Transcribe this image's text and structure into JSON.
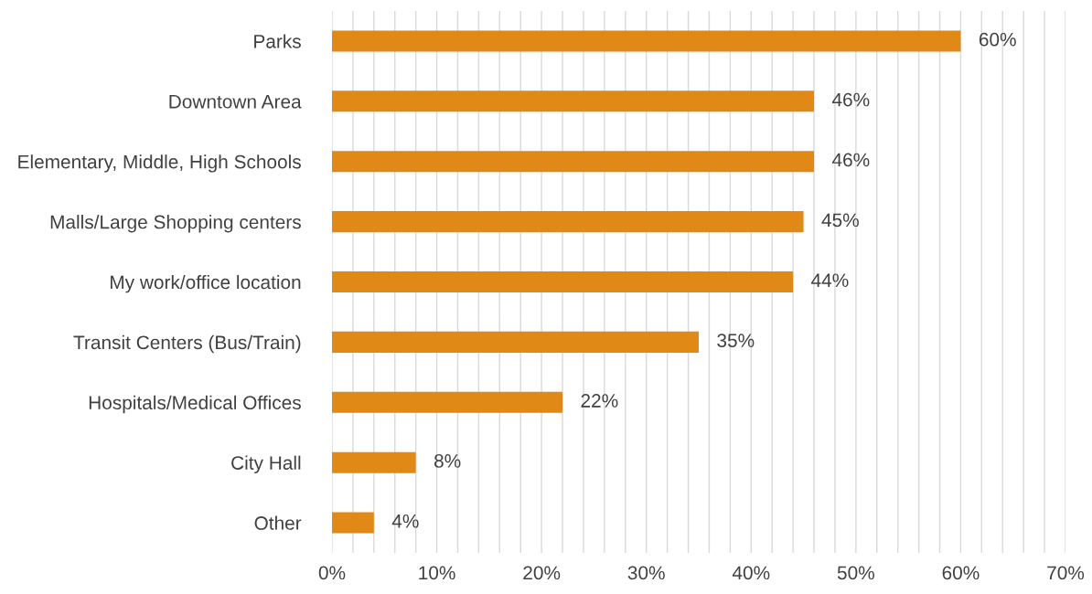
{
  "chart_data": {
    "type": "bar",
    "orientation": "horizontal",
    "categories": [
      "Parks",
      "Downtown Area",
      "Elementary, Middle, High Schools",
      "Malls/Large Shopping centers",
      "My work/office location",
      "Transit Centers (Bus/Train)",
      "Hospitals/Medical Offices",
      "City Hall",
      "Other"
    ],
    "values": [
      60,
      46,
      46,
      45,
      44,
      35,
      22,
      8,
      4
    ],
    "value_labels": [
      "60%",
      "46%",
      "46%",
      "45%",
      "44%",
      "35%",
      "22%",
      "8%",
      "4%"
    ],
    "color": "#e08916",
    "xlim": [
      0,
      70
    ],
    "xticks": [
      {
        "value": 0,
        "label": "0%"
      },
      {
        "value": 2,
        "label": null
      },
      {
        "value": 4,
        "label": null
      },
      {
        "value": 6,
        "label": null
      },
      {
        "value": 8,
        "label": null
      },
      {
        "value": 10,
        "label": "10%"
      },
      {
        "value": 12,
        "label": null
      },
      {
        "value": 14,
        "label": null
      },
      {
        "value": 16,
        "label": null
      },
      {
        "value": 18,
        "label": null
      },
      {
        "value": 20,
        "label": "20%"
      },
      {
        "value": 22,
        "label": null
      },
      {
        "value": 24,
        "label": null
      },
      {
        "value": 26,
        "label": null
      },
      {
        "value": 28,
        "label": null
      },
      {
        "value": 30,
        "label": "30%"
      },
      {
        "value": 32,
        "label": null
      },
      {
        "value": 34,
        "label": null
      },
      {
        "value": 36,
        "label": null
      },
      {
        "value": 38,
        "label": null
      },
      {
        "value": 40,
        "label": "40%"
      },
      {
        "value": 42,
        "label": null
      },
      {
        "value": 44,
        "label": null
      },
      {
        "value": 46,
        "label": null
      },
      {
        "value": 48,
        "label": null
      },
      {
        "value": 50,
        "label": "50%"
      },
      {
        "value": 52,
        "label": null
      },
      {
        "value": 54,
        "label": null
      },
      {
        "value": 56,
        "label": null
      },
      {
        "value": 58,
        "label": null
      },
      {
        "value": 60,
        "label": "60%"
      },
      {
        "value": 62,
        "label": null
      },
      {
        "value": 64,
        "label": null
      },
      {
        "value": 66,
        "label": null
      },
      {
        "value": 68,
        "label": null
      },
      {
        "value": 70,
        "label": "70%"
      }
    ],
    "grid": "x"
  }
}
